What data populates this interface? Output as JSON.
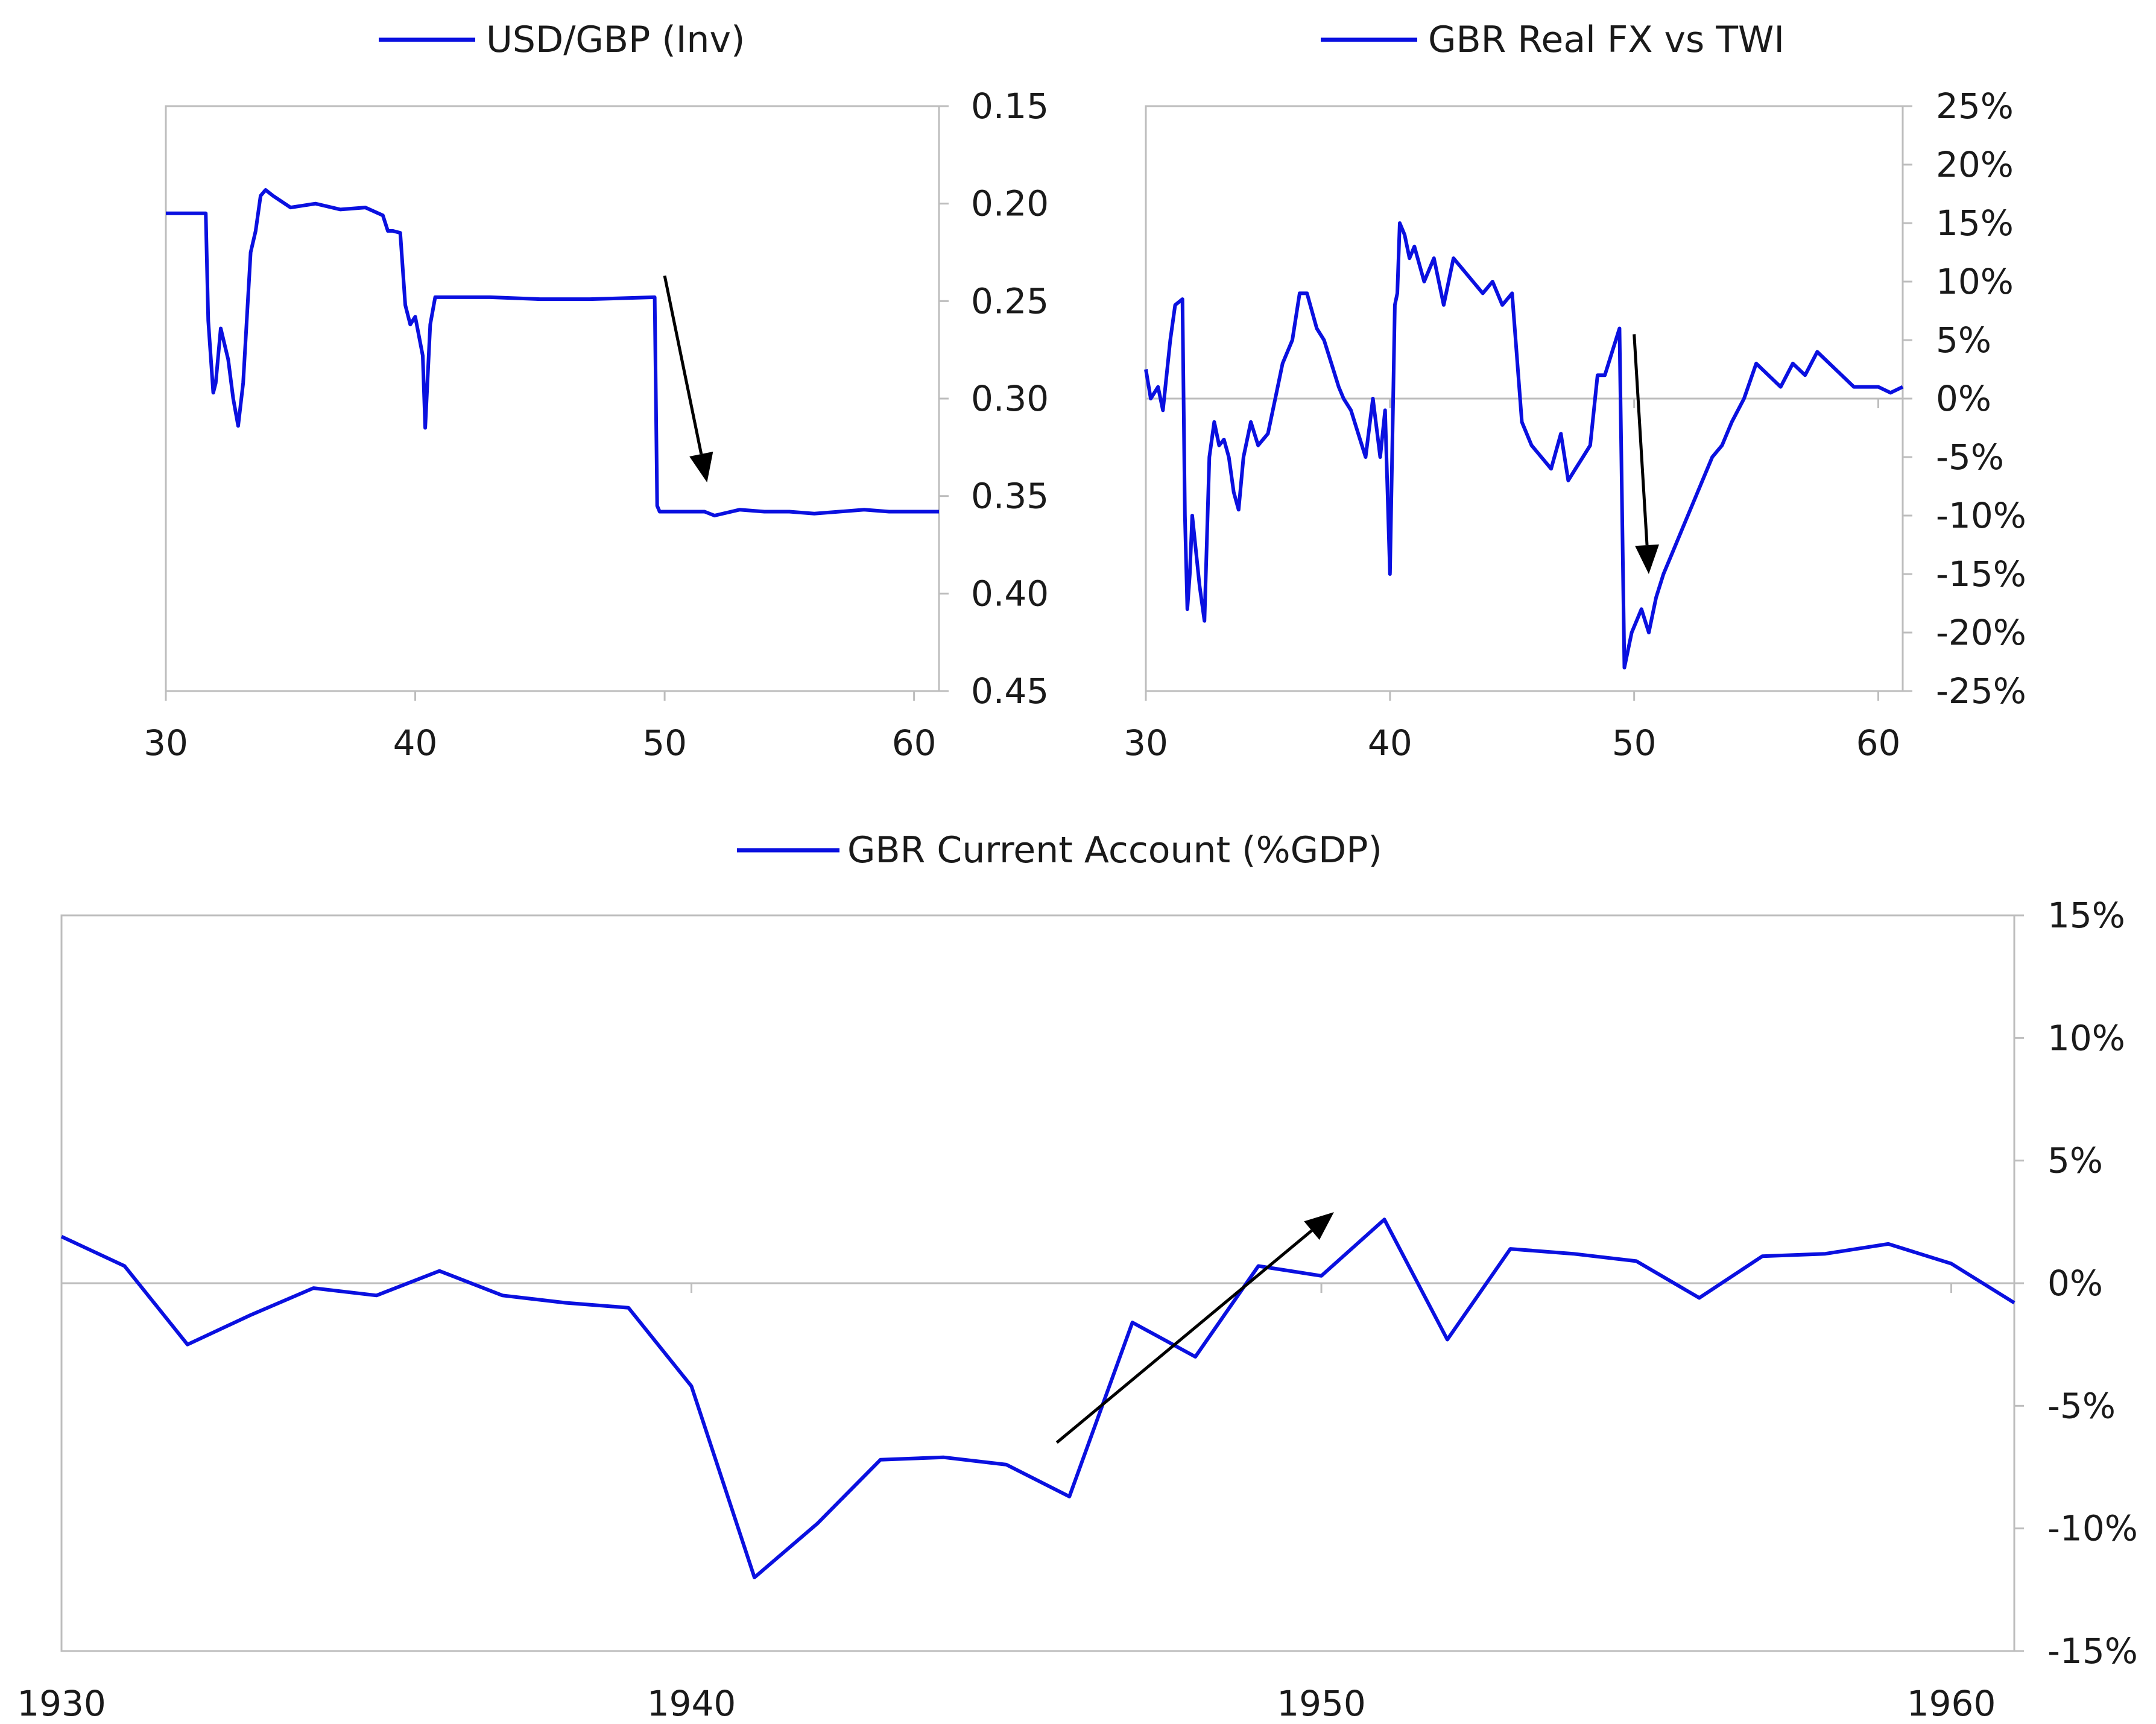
{
  "colors": {
    "series": "#0a10e0",
    "axis": "#bdbdbd",
    "text": "#1a1a1a",
    "arrow": "#000000"
  },
  "chart_data": [
    {
      "id": "usd-gbp",
      "type": "line",
      "legend": "USD/GBP (Inv)",
      "legend_position": "top",
      "x_ticks": [
        "30",
        "40",
        "50",
        "60"
      ],
      "x_tick_values": [
        30,
        40,
        50,
        60
      ],
      "xlim": [
        30,
        61
      ],
      "y_ticks": [
        "0.15",
        "0.20",
        "0.25",
        "0.30",
        "0.35",
        "0.40",
        "0.45"
      ],
      "y_tick_values": [
        0.15,
        0.2,
        0.25,
        0.3,
        0.35,
        0.4,
        0.45
      ],
      "ylim": [
        0.15,
        0.45
      ],
      "y_inverted": true,
      "y_axis_side": "right",
      "grid": false,
      "series": [
        {
          "x": [
            30,
            31,
            31.6,
            31.7,
            31.9,
            32.0,
            32.2,
            32.5,
            32.7,
            32.9,
            33.1,
            33.4,
            33.6,
            33.8,
            34.0,
            34.3,
            35,
            36,
            37,
            38,
            38.7,
            38.9,
            39.1,
            39.4,
            39.6,
            39.8,
            40.0,
            40.3,
            40.4,
            40.6,
            40.8,
            41,
            43,
            45,
            47,
            49.6,
            49.7,
            49.8,
            51.6,
            52.0,
            53,
            54,
            55,
            56,
            57,
            58,
            59,
            60,
            61
          ],
          "y": [
            0.205,
            0.205,
            0.205,
            0.26,
            0.297,
            0.292,
            0.264,
            0.28,
            0.3,
            0.314,
            0.292,
            0.225,
            0.214,
            0.196,
            0.193,
            0.196,
            0.202,
            0.2,
            0.203,
            0.202,
            0.206,
            0.214,
            0.214,
            0.215,
            0.252,
            0.262,
            0.258,
            0.278,
            0.315,
            0.262,
            0.248,
            0.248,
            0.248,
            0.249,
            0.249,
            0.248,
            0.355,
            0.358,
            0.358,
            0.36,
            0.357,
            0.358,
            0.358,
            0.359,
            0.358,
            0.357,
            0.358,
            0.358,
            0.358
          ]
        }
      ],
      "arrow": {
        "from": [
          50.0,
          0.237
        ],
        "to": [
          51.7,
          0.343
        ]
      }
    },
    {
      "id": "gbr-real-fx",
      "type": "line",
      "legend": "GBR Real FX vs TWI",
      "legend_position": "top",
      "x_ticks": [
        "30",
        "40",
        "50",
        "60"
      ],
      "x_tick_values": [
        30,
        40,
        50,
        60
      ],
      "xlim": [
        30,
        61
      ],
      "y_ticks": [
        "25%",
        "20%",
        "15%",
        "10%",
        "5%",
        "0%",
        "-5%",
        "-10%",
        "-15%",
        "-20%",
        "-25%"
      ],
      "y_tick_values": [
        25,
        20,
        15,
        10,
        5,
        0,
        -5,
        -10,
        -15,
        -20,
        -25
      ],
      "ylim": [
        -25,
        25
      ],
      "y_axis_side": "right",
      "grid": false,
      "zero_line": true,
      "series": [
        {
          "x": [
            30,
            30.2,
            30.5,
            30.7,
            31.0,
            31.2,
            31.5,
            31.6,
            31.7,
            31.8,
            31.9,
            32.0,
            32.2,
            32.4,
            32.6,
            32.8,
            33.0,
            33.2,
            33.4,
            33.6,
            33.8,
            34.0,
            34.3,
            34.6,
            35.0,
            35.3,
            35.6,
            36.0,
            36.3,
            36.6,
            37.0,
            37.3,
            37.6,
            37.9,
            38.1,
            38.4,
            38.7,
            39.0,
            39.3,
            39.6,
            39.8,
            40.0,
            40.2,
            40.3,
            40.4,
            40.6,
            40.8,
            41.0,
            41.4,
            41.8,
            42.2,
            42.6,
            43.0,
            43.4,
            43.8,
            44.2,
            44.6,
            45.0,
            45.4,
            45.8,
            46.2,
            46.6,
            47.0,
            47.3,
            47.6,
            47.9,
            48.2,
            48.5,
            48.8,
            49.1,
            49.4,
            49.6,
            49.7,
            49.9,
            50.1,
            50.3,
            50.6,
            50.9,
            51.2,
            51.6,
            52.0,
            52.4,
            52.8,
            53.2,
            53.6,
            54.0,
            54.5,
            55.0,
            55.5,
            56.0,
            56.5,
            57.0,
            57.5,
            58.0,
            58.5,
            59.0,
            59.5,
            60.0,
            60.5,
            61.0
          ],
          "y": [
            2.5,
            0,
            1,
            -1,
            5,
            8,
            8.5,
            -10,
            -18,
            -15,
            -10,
            -12,
            -16,
            -19,
            -5,
            -2,
            -4,
            -3.5,
            -5,
            -8,
            -9.5,
            -5,
            -2,
            -4,
            -3,
            0,
            3,
            5,
            9,
            9,
            6,
            5,
            3,
            1,
            0,
            -1,
            -3,
            -5,
            0,
            -5,
            -1,
            -15,
            8,
            9,
            15,
            14,
            12,
            13,
            10,
            12,
            8,
            12,
            11,
            10,
            9,
            10,
            8,
            9,
            -2,
            -4,
            -5,
            -6,
            -3,
            -7,
            -6,
            -5,
            -4,
            2,
            2,
            4,
            6,
            -23,
            -22,
            -20,
            -19,
            -18,
            -20,
            -17,
            -15,
            -13,
            -11,
            -9,
            -7,
            -5,
            -4,
            -2,
            0,
            3,
            2,
            1,
            3,
            2,
            4,
            3,
            2,
            1,
            1,
            1,
            0.5,
            1
          ]
        }
      ],
      "arrow": {
        "from": [
          50.0,
          5.5
        ],
        "to": [
          50.6,
          -15.0
        ]
      }
    },
    {
      "id": "gbr-current-account",
      "type": "line",
      "legend": "GBR Current Account (%GDP)",
      "legend_position": "top",
      "x_ticks": [
        "1930",
        "1940",
        "1950",
        "1960"
      ],
      "x_tick_values": [
        1930,
        1940,
        1950,
        1960
      ],
      "xlim": [
        1930,
        1961
      ],
      "y_ticks": [
        "15%",
        "10%",
        "5%",
        "0%",
        "-5%",
        "-10%",
        "-15%"
      ],
      "y_tick_values": [
        15,
        10,
        5,
        0,
        -5,
        -10,
        -15
      ],
      "ylim": [
        -15,
        15
      ],
      "y_axis_side": "right",
      "grid": false,
      "zero_line": true,
      "series": [
        {
          "x": [
            1930,
            1931,
            1932,
            1933,
            1934,
            1935,
            1936,
            1937,
            1938,
            1939,
            1940,
            1941,
            1942,
            1943,
            1944,
            1945,
            1946,
            1947,
            1948,
            1949,
            1950,
            1951,
            1952,
            1953,
            1954,
            1955,
            1956,
            1957,
            1958,
            1959,
            1960,
            1961
          ],
          "y": [
            1.9,
            0.7,
            -2.5,
            -1.3,
            -0.2,
            -0.5,
            0.5,
            -0.5,
            -0.8,
            -1.0,
            -4.2,
            -12.0,
            -9.8,
            -7.2,
            -7.1,
            -7.4,
            -8.7,
            -1.6,
            -3.0,
            0.7,
            0.3,
            2.6,
            -2.3,
            1.4,
            1.2,
            0.9,
            -0.6,
            1.1,
            1.2,
            1.6,
            0.8,
            -0.8
          ]
        }
      ],
      "arrow": {
        "from": [
          1945.8,
          -6.5
        ],
        "to": [
          1950.2,
          2.9
        ]
      }
    }
  ]
}
